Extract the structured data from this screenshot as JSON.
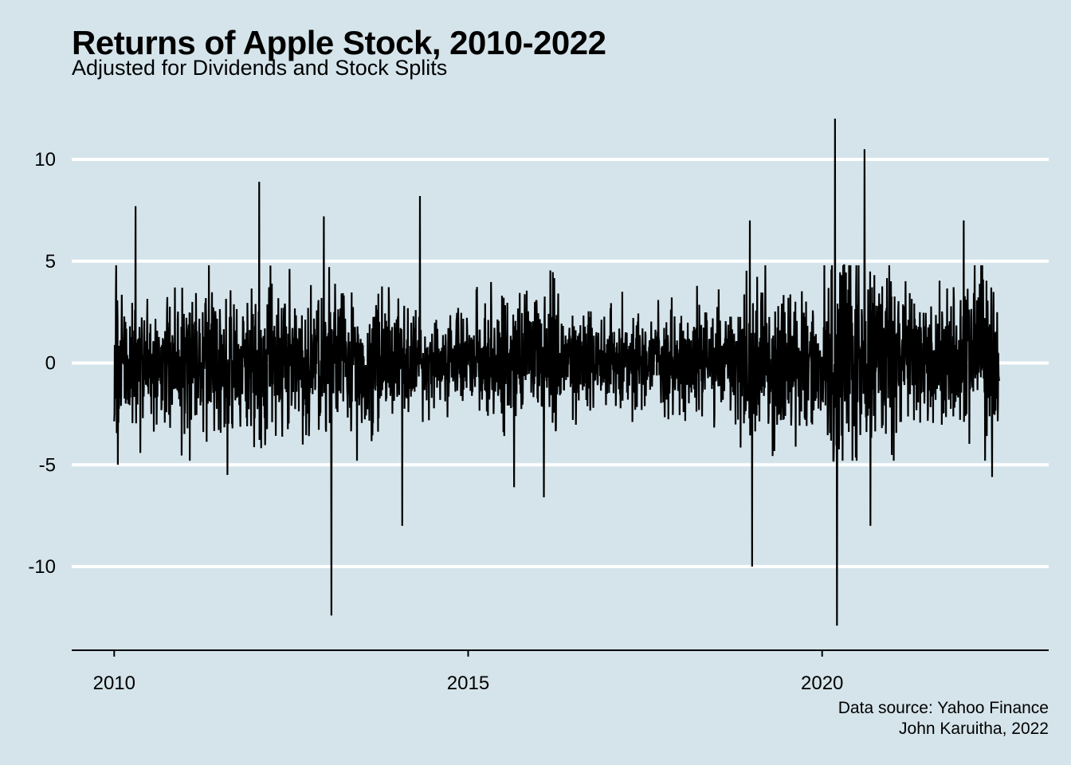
{
  "chart_data": {
    "type": "line",
    "title": "Returns of Apple Stock, 2010-2022",
    "subtitle": "Adjusted for Dividends and Stock Splits",
    "caption": [
      "Data source: Yahoo Finance",
      "John Karuitha, 2022"
    ],
    "xlabel": "",
    "ylabel": "",
    "x_ticks": [
      2010,
      2015,
      2020
    ],
    "y_ticks": [
      -10,
      -5,
      0,
      5,
      10
    ],
    "xlim": [
      2009.4,
      2023.2
    ],
    "ylim": [
      -14.0,
      13.5
    ],
    "grid": "horizontal",
    "line_color": "#000000",
    "background": "#d5e4eb",
    "x_start": 2010.0,
    "x_end": 2022.5,
    "n_points": 3150,
    "series": [
      {
        "values_note": "daily returns (%), extreme observations listed below",
        "extremes": [
          {
            "x": 2010.05,
            "y": -5.0
          },
          {
            "x": 2010.3,
            "y": 7.7
          },
          {
            "x": 2011.6,
            "y": -5.5
          },
          {
            "x": 2012.05,
            "y": 8.9
          },
          {
            "x": 2012.96,
            "y": 7.2
          },
          {
            "x": 2013.07,
            "y": -12.4
          },
          {
            "x": 2014.07,
            "y": -8.0
          },
          {
            "x": 2014.32,
            "y": 8.2
          },
          {
            "x": 2015.65,
            "y": -6.1
          },
          {
            "x": 2016.07,
            "y": -6.6
          },
          {
            "x": 2018.98,
            "y": 7.0
          },
          {
            "x": 2019.01,
            "y": -10.0
          },
          {
            "x": 2020.18,
            "y": 12.0
          },
          {
            "x": 2020.21,
            "y": -12.9
          },
          {
            "x": 2020.6,
            "y": 10.5
          },
          {
            "x": 2020.68,
            "y": -8.0
          },
          {
            "x": 2022.0,
            "y": 7.0
          },
          {
            "x": 2022.4,
            "y": -5.6
          }
        ]
      }
    ]
  }
}
